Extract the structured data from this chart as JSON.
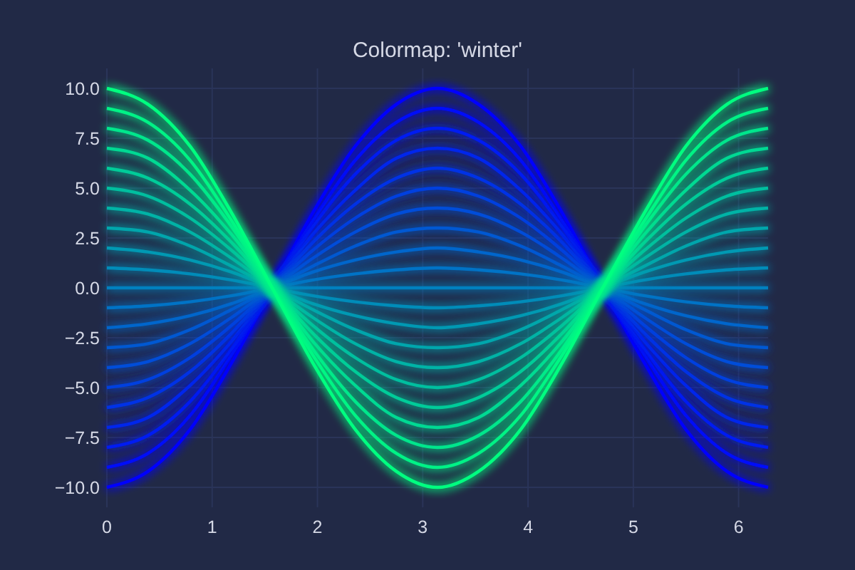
{
  "chart_data": {
    "type": "line",
    "title": "Colormap: 'winter'",
    "x": [
      0,
      0.39,
      0.79,
      1.18,
      1.57,
      1.96,
      2.36,
      2.75,
      3.14,
      3.53,
      3.93,
      4.32,
      4.71,
      5.11,
      5.5,
      5.89,
      6.28
    ],
    "series": [
      {
        "color": "#0000ff",
        "values": [
          -10,
          -9.2,
          -7.1,
          -3.8,
          0,
          3.8,
          7.1,
          9.2,
          10,
          9.2,
          7.1,
          3.8,
          0,
          -3.8,
          -7.1,
          -9.2,
          -10
        ]
      },
      {
        "color": "#000df9",
        "values": [
          -9,
          -8.3,
          -6.4,
          -3.4,
          0,
          3.4,
          6.4,
          8.3,
          9,
          8.3,
          6.4,
          3.4,
          0,
          -3.4,
          -6.4,
          -8.3,
          -9
        ]
      },
      {
        "color": "#001af2",
        "values": [
          -8,
          -7.4,
          -5.7,
          -3.1,
          0,
          3.1,
          5.7,
          7.4,
          8,
          7.4,
          5.7,
          3.1,
          0,
          -3.1,
          -5.7,
          -7.4,
          -8
        ]
      },
      {
        "color": "#0026ec",
        "values": [
          -7,
          -6.5,
          -4.9,
          -2.7,
          0,
          2.7,
          4.9,
          6.5,
          7,
          6.5,
          4.9,
          2.7,
          0,
          -2.7,
          -4.9,
          -6.5,
          -7
        ]
      },
      {
        "color": "#0033e6",
        "values": [
          -6,
          -5.5,
          -4.2,
          -2.3,
          0,
          2.3,
          4.2,
          5.5,
          6,
          5.5,
          4.2,
          2.3,
          0,
          -2.3,
          -4.2,
          -5.5,
          -6
        ]
      },
      {
        "color": "#0040df",
        "values": [
          -5,
          -4.6,
          -3.5,
          -1.9,
          0,
          1.9,
          3.5,
          4.6,
          5,
          4.6,
          3.5,
          1.9,
          0,
          -1.9,
          -3.5,
          -4.6,
          -5
        ]
      },
      {
        "color": "#004dd9",
        "values": [
          -4,
          -3.7,
          -2.8,
          -1.5,
          0,
          1.5,
          2.8,
          3.7,
          4,
          3.7,
          2.8,
          1.5,
          0,
          -1.5,
          -2.8,
          -3.7,
          -4
        ]
      },
      {
        "color": "#0059d2",
        "values": [
          -3,
          -2.8,
          -2.1,
          -1.1,
          0,
          1.1,
          2.1,
          2.8,
          3,
          2.8,
          2.1,
          1.1,
          0,
          -1.1,
          -2.1,
          -2.8,
          -3
        ]
      },
      {
        "color": "#0066cc",
        "values": [
          -2,
          -1.8,
          -1.4,
          -0.8,
          0,
          0.8,
          1.4,
          1.8,
          2,
          1.8,
          1.4,
          0.8,
          0,
          -0.8,
          -1.4,
          -1.8,
          -2
        ]
      },
      {
        "color": "#0073c6",
        "values": [
          -1,
          -0.9,
          -0.7,
          -0.4,
          0,
          0.4,
          0.7,
          0.9,
          1,
          0.9,
          0.7,
          0.4,
          0,
          -0.4,
          -0.7,
          -0.9,
          -1
        ]
      },
      {
        "color": "#0080bf",
        "values": [
          0,
          0,
          0,
          0,
          0,
          0,
          0,
          0,
          0,
          0,
          0,
          0,
          0,
          0,
          0,
          0,
          0
        ]
      },
      {
        "color": "#008cb9",
        "values": [
          1,
          0.9,
          0.7,
          0.4,
          0,
          -0.4,
          -0.7,
          -0.9,
          -1,
          -0.9,
          -0.7,
          -0.4,
          0,
          0.4,
          0.7,
          0.9,
          1
        ]
      },
      {
        "color": "#0099b3",
        "values": [
          2,
          1.8,
          1.4,
          0.8,
          0,
          -0.8,
          -1.4,
          -1.8,
          -2,
          -1.8,
          -1.4,
          -0.8,
          0,
          0.8,
          1.4,
          1.8,
          2
        ]
      },
      {
        "color": "#00a6ac",
        "values": [
          3,
          2.8,
          2.1,
          1.1,
          0,
          -1.1,
          -2.1,
          -2.8,
          -3,
          -2.8,
          -2.1,
          -1.1,
          0,
          1.1,
          2.1,
          2.8,
          3
        ]
      },
      {
        "color": "#00b3a6",
        "values": [
          4,
          3.7,
          2.8,
          1.5,
          0,
          -1.5,
          -2.8,
          -3.7,
          -4,
          -3.7,
          -2.8,
          -1.5,
          0,
          1.5,
          2.8,
          3.7,
          4
        ]
      },
      {
        "color": "#00bf9f",
        "values": [
          5,
          4.6,
          3.5,
          1.9,
          0,
          -1.9,
          -3.5,
          -4.6,
          -5,
          -4.6,
          -3.5,
          -1.9,
          0,
          1.9,
          3.5,
          4.6,
          5
        ]
      },
      {
        "color": "#00cc99",
        "values": [
          6,
          5.5,
          4.2,
          2.3,
          0,
          -2.3,
          -4.2,
          -5.5,
          -6,
          -5.5,
          -4.2,
          -2.3,
          0,
          2.3,
          4.2,
          5.5,
          6
        ]
      },
      {
        "color": "#00d993",
        "values": [
          7,
          6.5,
          4.9,
          2.7,
          0,
          -2.7,
          -4.9,
          -6.5,
          -7,
          -6.5,
          -4.9,
          -2.7,
          0,
          2.7,
          4.9,
          6.5,
          7
        ]
      },
      {
        "color": "#00e68c",
        "values": [
          8,
          7.4,
          5.7,
          3.1,
          0,
          -3.1,
          -5.7,
          -7.4,
          -8,
          -7.4,
          -5.7,
          -3.1,
          0,
          3.1,
          5.7,
          7.4,
          8
        ]
      },
      {
        "color": "#00f286",
        "values": [
          9,
          8.3,
          6.4,
          3.4,
          0,
          -3.4,
          -6.4,
          -8.3,
          -9,
          -8.3,
          -6.4,
          -3.4,
          0,
          3.4,
          6.4,
          8.3,
          9
        ]
      },
      {
        "color": "#00ff80",
        "values": [
          10,
          9.2,
          7.1,
          3.8,
          0,
          -3.8,
          -7.1,
          -9.2,
          -10,
          -9.2,
          -7.1,
          -3.8,
          0,
          3.8,
          7.1,
          9.2,
          10
        ]
      }
    ],
    "xlim": [
      0,
      6.28
    ],
    "xticks": [
      0,
      1,
      2,
      3,
      4,
      5,
      6
    ],
    "ylim": [
      -11,
      11
    ],
    "yticks": [
      {
        "value": -10,
        "label": "−10.0"
      },
      {
        "value": -7.5,
        "label": "−7.5"
      },
      {
        "value": -5,
        "label": "−5.0"
      },
      {
        "value": -2.5,
        "label": "−2.5"
      },
      {
        "value": 0,
        "label": "0.0"
      },
      {
        "value": 2.5,
        "label": "2.5"
      },
      {
        "value": 5,
        "label": "5.0"
      },
      {
        "value": 7.5,
        "label": "7.5"
      },
      {
        "value": 10,
        "label": "10.0"
      }
    ],
    "grid": true
  }
}
